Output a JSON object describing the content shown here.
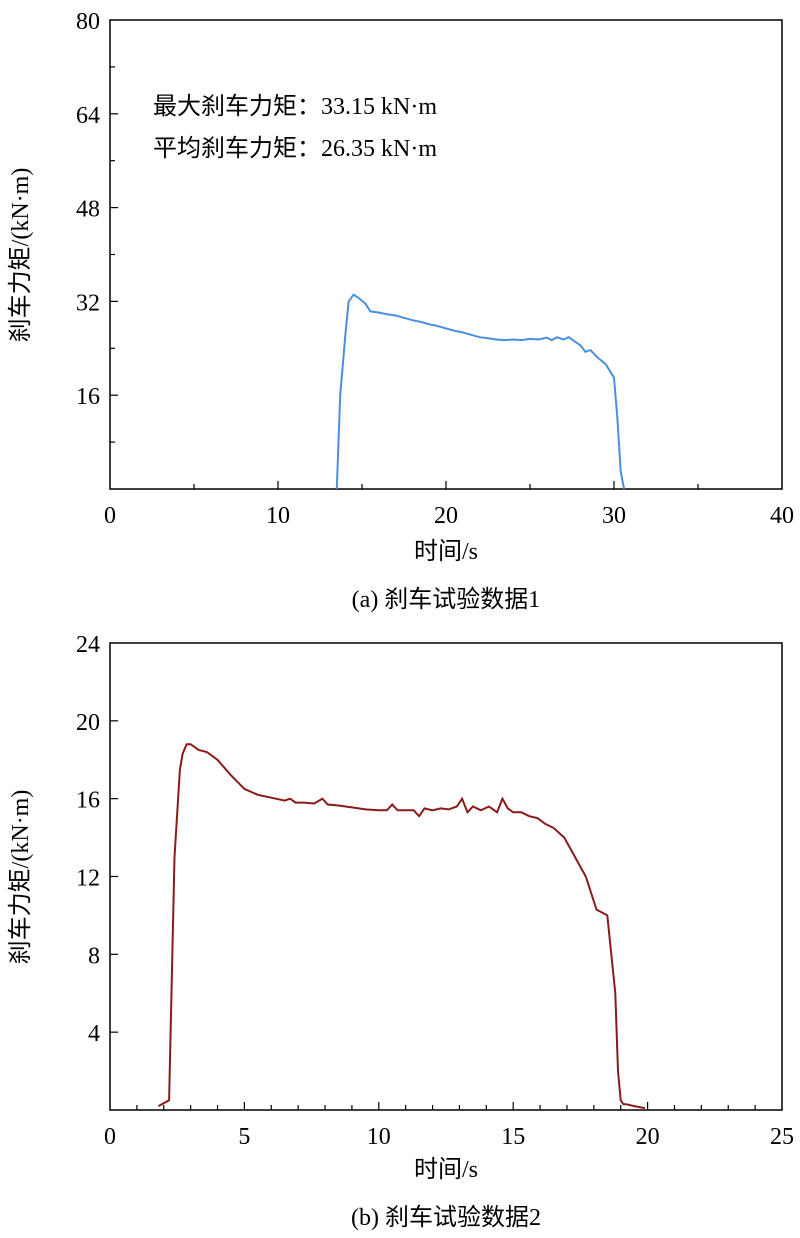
{
  "chart_data": [
    {
      "type": "line",
      "caption": "(a) 刹车试验数据1",
      "xlabel": "时间/s",
      "ylabel": "刹车力矩/(kN·m)",
      "xlim": [
        0,
        40
      ],
      "ylim": [
        0,
        80
      ],
      "xticks": [
        0,
        10,
        20,
        30,
        40
      ],
      "yticks": [
        16,
        32,
        48,
        64,
        80
      ],
      "annotations": [
        "最大刹车力矩：33.15 kN·m",
        "平均刹车力矩：26.35 kN·m"
      ],
      "line_color": "#4a8fe0",
      "series": [
        {
          "x": [
            13.5,
            13.7,
            14.0,
            14.2,
            14.5,
            14.8,
            15.2,
            15.5,
            16.0,
            16.5,
            17.0,
            17.5,
            18.0,
            18.5,
            19.0,
            19.5,
            20.0,
            20.5,
            21.0,
            21.5,
            22.0,
            22.5,
            23.0,
            23.5,
            24.0,
            24.5,
            25.0,
            25.5,
            26.0,
            26.3,
            26.6,
            27.0,
            27.3,
            27.6,
            28.0,
            28.3,
            28.6,
            29.0,
            29.5,
            30.0,
            30.2,
            30.4,
            30.6
          ],
          "y": [
            0,
            16.0,
            26.0,
            32.0,
            33.15,
            32.6,
            31.6,
            30.3,
            30.1,
            29.8,
            29.6,
            29.2,
            28.8,
            28.5,
            28.1,
            27.8,
            27.4,
            27.0,
            26.7,
            26.3,
            25.9,
            25.7,
            25.5,
            25.4,
            25.5,
            25.4,
            25.6,
            25.5,
            25.8,
            25.4,
            25.9,
            25.5,
            25.9,
            25.3,
            24.5,
            23.4,
            23.7,
            22.5,
            21.3,
            19.0,
            12.0,
            3.0,
            0
          ]
        }
      ]
    },
    {
      "type": "line",
      "caption": "(b) 刹车试验数据2",
      "xlabel": "时间/s",
      "ylabel": "刹车力矩/(kN·m)",
      "xlim": [
        0,
        25
      ],
      "ylim": [
        0,
        24
      ],
      "xticks": [
        0,
        5,
        10,
        15,
        20,
        25
      ],
      "yticks": [
        4,
        8,
        12,
        16,
        20,
        24
      ],
      "annotations": [],
      "line_color": "#8b1a1a",
      "series": [
        {
          "x": [
            1.8,
            2.2,
            2.4,
            2.6,
            2.7,
            2.85,
            3.0,
            3.3,
            3.6,
            4.0,
            4.5,
            5.0,
            5.5,
            6.0,
            6.5,
            6.7,
            6.9,
            7.2,
            7.6,
            7.9,
            8.1,
            8.5,
            9.0,
            9.5,
            10.0,
            10.3,
            10.5,
            10.7,
            11.0,
            11.3,
            11.5,
            11.7,
            12.0,
            12.3,
            12.6,
            12.9,
            13.1,
            13.3,
            13.5,
            13.8,
            14.1,
            14.4,
            14.6,
            14.8,
            15.0,
            15.3,
            15.6,
            15.9,
            16.2,
            16.5,
            16.9,
            17.3,
            17.7,
            18.1,
            18.5,
            18.8,
            18.9,
            19.0,
            19.1,
            19.2,
            19.5,
            19.9
          ],
          "y": [
            0.2,
            0.5,
            13.0,
            17.5,
            18.3,
            18.8,
            18.8,
            18.5,
            18.4,
            18.0,
            17.2,
            16.5,
            16.2,
            16.05,
            15.9,
            16.0,
            15.8,
            15.8,
            15.75,
            16.0,
            15.7,
            15.65,
            15.55,
            15.45,
            15.4,
            15.4,
            15.7,
            15.4,
            15.4,
            15.4,
            15.1,
            15.5,
            15.4,
            15.5,
            15.45,
            15.6,
            16.0,
            15.3,
            15.6,
            15.4,
            15.6,
            15.3,
            16.0,
            15.5,
            15.3,
            15.3,
            15.1,
            15.0,
            14.7,
            14.5,
            14.0,
            13.0,
            12.0,
            10.3,
            10.0,
            6.0,
            2.0,
            0.5,
            0.3,
            0.3,
            0.2,
            0.1
          ]
        }
      ]
    }
  ]
}
